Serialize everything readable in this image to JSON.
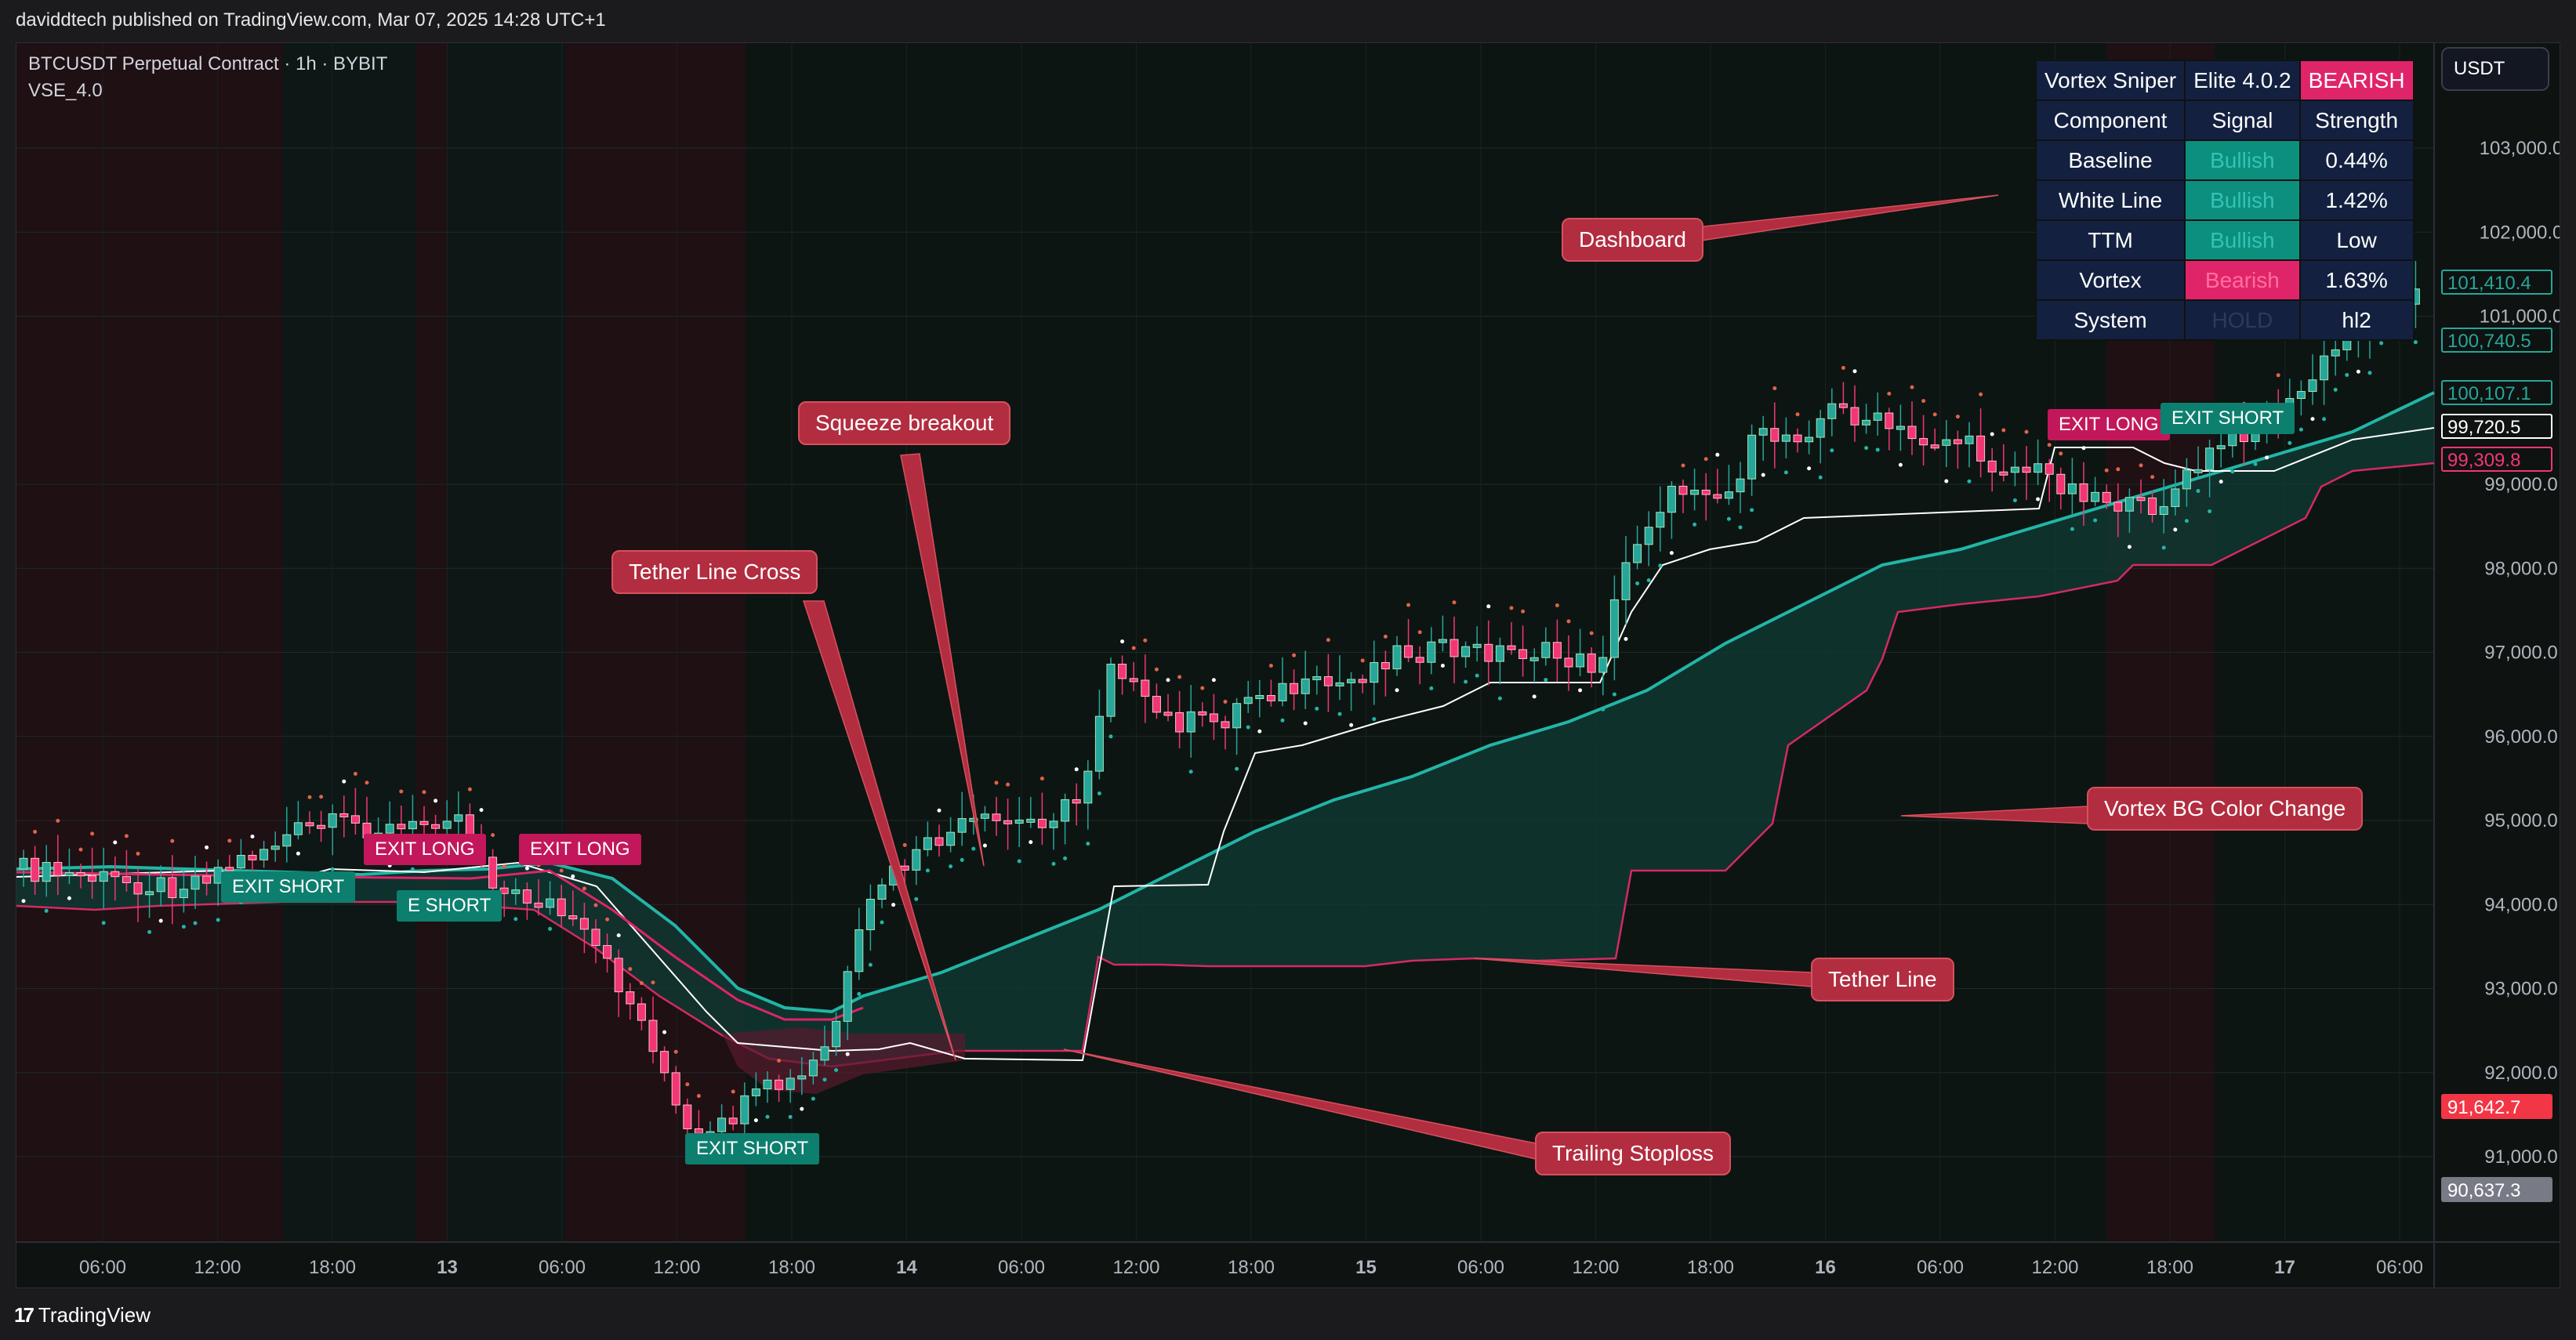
{
  "header": {
    "published": "daviddtech published on TradingView.com, Mar 07, 2025 14:28 UTC+1"
  },
  "chart": {
    "symbol": "BTCUSDT Perpetual Contract · 1h · BYBIT",
    "indicator": "VSE_4.0",
    "currency_button": "USDT",
    "y_axis_labels": [
      "103,000.0",
      "102,000.0",
      "101,000.0",
      "99,000.0",
      "98,000.0",
      "97,000.0",
      "96,000.0",
      "95,000.0",
      "94,000.0",
      "93,000.0",
      "92,000.0",
      "91,000.0"
    ],
    "x_axis_labels": [
      "06:00",
      "12:00",
      "18:00",
      "13",
      "06:00",
      "12:00",
      "18:00",
      "14",
      "06:00",
      "12:00",
      "18:00",
      "15",
      "06:00",
      "12:00",
      "18:00",
      "16",
      "06:00",
      "12:00",
      "18:00",
      "17",
      "06:00"
    ],
    "price_labels": [
      {
        "text": "101,410.4",
        "kind": "teal-outline"
      },
      {
        "text": "100,740.5",
        "kind": "teal-outline"
      },
      {
        "text": "100,107.1",
        "kind": "teal-outline"
      },
      {
        "text": "99,720.5",
        "kind": "white-outline"
      },
      {
        "text": "99,309.8",
        "kind": "pink-outline"
      },
      {
        "text": "91,642.7",
        "kind": "red-fill"
      },
      {
        "text": "90,637.3",
        "kind": "gray-fill"
      }
    ]
  },
  "dashboard": {
    "title": "Vortex Sniper",
    "version": "Elite 4.0.2",
    "state": "BEARISH",
    "headers": [
      "Component",
      "Signal",
      "Strength"
    ],
    "rows": [
      {
        "name": "Baseline",
        "signal": "Bullish",
        "strength": "0.44%",
        "sig_color": "#0d8f7e"
      },
      {
        "name": "White Line",
        "signal": "Bullish",
        "strength": "1.42%",
        "sig_color": "#0d8f7e"
      },
      {
        "name": "TTM",
        "signal": "Bullish",
        "strength": "Low",
        "sig_color": "#0d8f7e"
      },
      {
        "name": "Vortex",
        "signal": "Bearish",
        "strength": "1.63%",
        "sig_color": "#e0246a"
      },
      {
        "name": "System",
        "signal": "HOLD",
        "strength": "hl2",
        "sig_color": "#13203f"
      }
    ]
  },
  "callouts": {
    "dashboard": "Dashboard",
    "squeeze": "Squeeze breakout",
    "tether_cross": "Tether Line Cross",
    "vortex_bg": "Vortex BG Color Change",
    "tether_line": "Tether Line",
    "trailing": "Trailing Stoploss"
  },
  "signals": {
    "exit_long": "EXIT LONG",
    "exit_short": "EXIT SHORT",
    "exit_long_partial": "EXIT LONG",
    "exit_short_partial": "E    SHORT",
    "exit_long_r": "EXIT LONG",
    "exit_short_r": "EXIT SHORT",
    "exit_short_l": "EXIT SHORT",
    "exit_short_bottom": "EXIT SHORT"
  },
  "footer": {
    "brand": "TradingView"
  },
  "colors": {
    "bull": "#26a69a",
    "bear": "#f23674",
    "baseline": "#22b5a6",
    "tether": "#e0246a",
    "trail": "#ffffff",
    "bg": "#0e1211"
  }
}
